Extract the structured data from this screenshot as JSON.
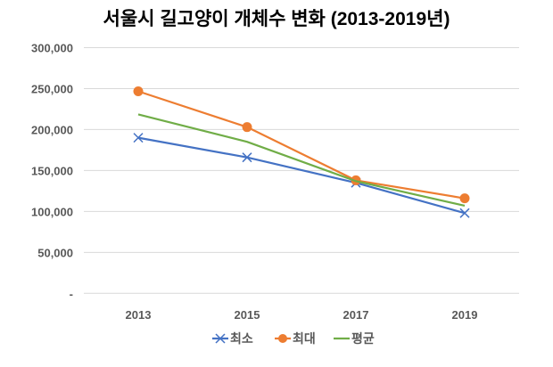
{
  "chart_data": {
    "type": "line",
    "title": "서울시 길고양이 개체수 변화 (2013-2019년)",
    "xlabel": "",
    "ylabel": "",
    "categories": [
      "2013",
      "2015",
      "2017",
      "2019"
    ],
    "ylim": [
      0,
      300000
    ],
    "yticks": [
      0,
      50000,
      100000,
      150000,
      200000,
      250000,
      300000
    ],
    "ytick_labels": [
      "-",
      "50,000",
      "100,000",
      "150,000",
      "200,000",
      "250,000",
      "300,000"
    ],
    "grid": true,
    "legend_position": "bottom",
    "series": [
      {
        "name": "최소",
        "color": "#4472C4",
        "marker": "x",
        "values": [
          190000,
          166000,
          135000,
          98000
        ]
      },
      {
        "name": "최대",
        "color": "#ED7D31",
        "marker": "circle",
        "values": [
          246700,
          203000,
          138000,
          116000
        ]
      },
      {
        "name": "평균",
        "color": "#70AD47",
        "marker": "none",
        "values": [
          218500,
          185000,
          137000,
          107000
        ]
      }
    ]
  }
}
